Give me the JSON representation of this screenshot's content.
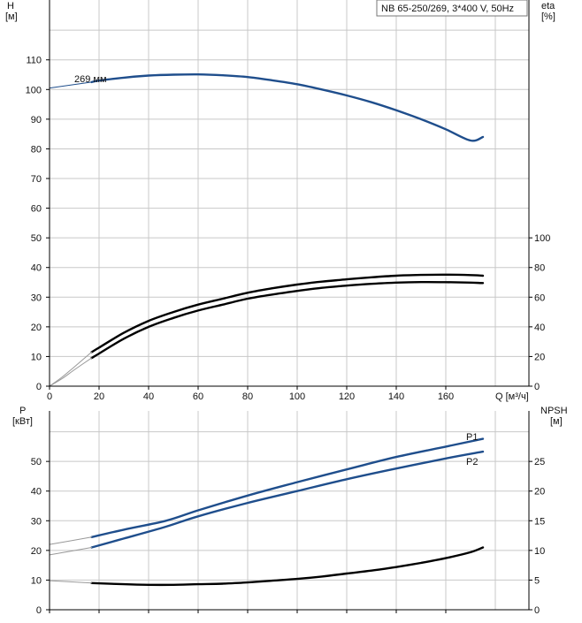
{
  "chart_data": [
    {
      "type": "line",
      "title": "NB 65-250/269, 3*400 V, 50Hz",
      "ylabel_left": "H",
      "ylabel_left_unit": "[м]",
      "ylabel_right": "eta",
      "ylabel_right_unit": "[%]",
      "xlabel": "Q [м³/ч]",
      "xlim": [
        0,
        200
      ],
      "ylim_left": [
        0,
        120
      ],
      "ylim_right": [
        0,
        240
      ],
      "x_ticks": [
        "0",
        "20",
        "40",
        "60",
        "80",
        "100",
        "120",
        "140",
        "160"
      ],
      "left_ticks": [
        "0",
        "10",
        "20",
        "30",
        "40",
        "50",
        "60",
        "70",
        "80",
        "90",
        "100",
        "110"
      ],
      "right_ticks": [
        "0",
        "20",
        "40",
        "60",
        "80",
        "100"
      ],
      "annotation": "269 мм",
      "series": [
        {
          "name": "H",
          "axis": "left",
          "color": "#1f4e8c",
          "x": [
            17,
            20,
            30,
            40,
            50,
            60,
            70,
            80,
            90,
            100,
            110,
            120,
            130,
            140,
            150,
            160,
            170,
            175
          ],
          "values": [
            102.5,
            103,
            104,
            104.7,
            105,
            105.1,
            104.8,
            104.2,
            103.1,
            101.8,
            100,
            98,
            95.7,
            93,
            90,
            86.6,
            82.8,
            84
          ]
        },
        {
          "axis": "left",
          "color": "#1f4e8c",
          "dashed_extension": true,
          "x": [
            0,
            17
          ],
          "values": [
            100.5,
            102.5
          ]
        },
        {
          "axis": "right",
          "color": "#000000",
          "x": [
            17,
            20,
            30,
            40,
            50,
            60,
            70,
            80,
            90,
            100,
            110,
            120,
            130,
            140,
            150,
            160,
            170,
            175
          ],
          "values": [
            23,
            26,
            36,
            44,
            50,
            55,
            59,
            63,
            66,
            68.5,
            70.5,
            72,
            73.4,
            74.5,
            75,
            75.2,
            74.9,
            74.5
          ]
        },
        {
          "axis": "right",
          "color": "#000000",
          "x": [
            17,
            20,
            30,
            40,
            50,
            60,
            70,
            80,
            90,
            100,
            110,
            120,
            130,
            140,
            150,
            160,
            170,
            175
          ],
          "values": [
            19,
            22,
            32,
            40,
            46,
            51,
            55,
            59,
            61.8,
            64.2,
            66.3,
            67.8,
            69,
            69.8,
            70.2,
            70.1,
            69.8,
            69.5
          ]
        },
        {
          "axis": "right",
          "color": "#999999",
          "dashed_extension": true,
          "x": [
            0,
            5,
            10,
            17
          ],
          "values": [
            0,
            6,
            13,
            23
          ]
        },
        {
          "axis": "right",
          "color": "#999999",
          "dashed_extension": true,
          "x": [
            0,
            5,
            10,
            17
          ],
          "values": [
            0,
            5,
            11,
            19
          ]
        }
      ]
    },
    {
      "type": "line",
      "ylabel_left": "P",
      "ylabel_left_unit": "[кВт]",
      "ylabel_right": "NPSH",
      "ylabel_right_unit": "[м]",
      "xlim": [
        0,
        200
      ],
      "ylim_left": [
        0,
        60
      ],
      "ylim_right": [
        0,
        30
      ],
      "left_ticks": [
        "0",
        "10",
        "20",
        "30",
        "40",
        "50"
      ],
      "right_ticks": [
        "0",
        "5",
        "10",
        "15",
        "20",
        "25"
      ],
      "series": [
        {
          "name": "P1",
          "axis": "left",
          "color": "#1f4e8c",
          "x": [
            17,
            30,
            47,
            60,
            80,
            100,
            120,
            140,
            160,
            175
          ],
          "values": [
            24.5,
            27,
            30,
            33.5,
            38.5,
            43,
            47.3,
            51.5,
            55,
            57.6
          ]
        },
        {
          "name": "P2",
          "axis": "left",
          "color": "#1f4e8c",
          "x": [
            17,
            30,
            47,
            60,
            80,
            100,
            120,
            140,
            160,
            175
          ],
          "values": [
            21,
            24,
            28,
            31.5,
            36,
            40,
            44,
            47.6,
            51,
            53.3
          ]
        },
        {
          "axis": "right",
          "color": "#000000",
          "x": [
            17,
            30,
            40,
            50,
            60,
            70,
            80,
            90,
            100,
            110,
            120,
            130,
            140,
            150,
            160,
            170,
            175
          ],
          "values": [
            4.5,
            4.3,
            4.2,
            4.2,
            4.3,
            4.4,
            4.6,
            4.9,
            5.2,
            5.6,
            6.1,
            6.6,
            7.2,
            7.9,
            8.7,
            9.7,
            10.5
          ]
        },
        {
          "axis": "left",
          "color": "#999999",
          "dashed_extension": true,
          "x": [
            0,
            17
          ],
          "values": [
            22,
            24.5
          ]
        },
        {
          "axis": "left",
          "color": "#999999",
          "dashed_extension": true,
          "x": [
            0,
            17
          ],
          "values": [
            18.5,
            21
          ]
        },
        {
          "axis": "right",
          "color": "#999999",
          "dashed_extension": true,
          "x": [
            0,
            17
          ],
          "values": [
            4.9,
            4.5
          ]
        }
      ]
    }
  ]
}
